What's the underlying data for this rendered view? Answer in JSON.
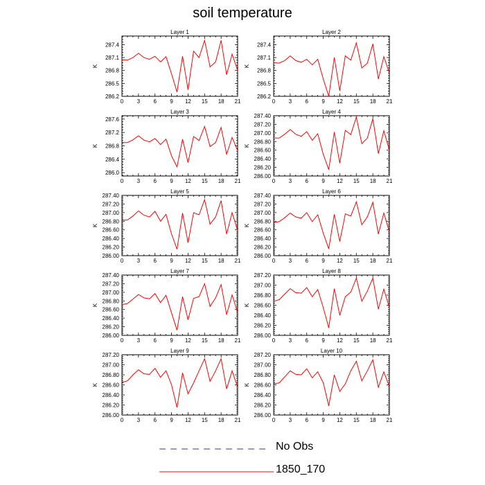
{
  "title": "soil temperature",
  "legend": [
    {
      "label": "No Obs",
      "color": "#3333aa",
      "style": "dashed"
    },
    {
      "label": "1850_170",
      "color": "#ff0000",
      "style": "solid"
    }
  ],
  "chart_data": [
    {
      "type": "line",
      "title": "Layer 1",
      "ylabel": "K",
      "xlim": [
        0,
        21
      ],
      "xticks": [
        0,
        3,
        6,
        9,
        12,
        15,
        18,
        21
      ],
      "ylim": [
        286.2,
        287.6
      ],
      "yticks": [
        286.2,
        286.5,
        286.8,
        287.1,
        287.4
      ],
      "ytick_labels": [
        "286.2",
        "286.5",
        "286.8",
        "287.1",
        "287.4"
      ],
      "series": [
        {
          "name": "1850_170",
          "color": "#ff0000",
          "x": [
            0,
            1,
            2,
            3,
            4,
            5,
            6,
            7,
            8,
            9,
            10,
            11,
            12,
            13,
            14,
            15,
            16,
            17,
            18,
            19,
            20,
            21
          ],
          "y": [
            287.05,
            287.04,
            287.1,
            287.2,
            287.1,
            287.06,
            287.13,
            287.0,
            287.12,
            286.72,
            286.3,
            287.13,
            286.35,
            287.25,
            287.1,
            287.5,
            286.88,
            287.0,
            287.5,
            286.7,
            287.18,
            286.8
          ]
        }
      ]
    },
    {
      "type": "line",
      "title": "Layer 2",
      "ylabel": "K",
      "xlim": [
        0,
        21
      ],
      "xticks": [
        0,
        3,
        6,
        9,
        12,
        15,
        18,
        21
      ],
      "ylim": [
        286.2,
        287.6
      ],
      "yticks": [
        286.2,
        286.5,
        286.8,
        287.1,
        287.4
      ],
      "ytick_labels": [
        "286.2",
        "286.5",
        "286.8",
        "287.1",
        "287.4"
      ],
      "series": [
        {
          "name": "1850_170",
          "color": "#ff0000",
          "x": [
            0,
            1,
            2,
            3,
            4,
            5,
            6,
            7,
            8,
            9,
            10,
            11,
            12,
            13,
            14,
            15,
            16,
            17,
            18,
            19,
            20,
            21
          ],
          "y": [
            286.98,
            286.97,
            287.03,
            287.14,
            287.03,
            286.99,
            287.06,
            286.93,
            287.06,
            286.6,
            286.2,
            287.1,
            286.33,
            287.14,
            287.04,
            287.44,
            286.86,
            286.97,
            287.42,
            286.6,
            287.12,
            286.74
          ]
        }
      ]
    },
    {
      "type": "line",
      "title": "Layer 3",
      "ylabel": "K",
      "xlim": [
        0,
        21
      ],
      "xticks": [
        0,
        3,
        6,
        9,
        12,
        15,
        18,
        21
      ],
      "ylim": [
        285.9,
        287.7
      ],
      "yticks": [
        286.0,
        286.4,
        286.8,
        287.2,
        287.6
      ],
      "ytick_labels": [
        "286.0",
        "286.4",
        "286.8",
        "287.2",
        "287.6"
      ],
      "series": [
        {
          "name": "1850_170",
          "color": "#ff0000",
          "x": [
            0,
            1,
            2,
            3,
            4,
            5,
            6,
            7,
            8,
            9,
            10,
            11,
            12,
            13,
            14,
            15,
            16,
            17,
            18,
            19,
            20,
            21
          ],
          "y": [
            286.9,
            286.9,
            286.98,
            287.1,
            286.97,
            286.92,
            287.02,
            286.84,
            287.0,
            286.5,
            286.17,
            287.0,
            286.3,
            287.08,
            286.96,
            287.38,
            286.78,
            286.9,
            287.35,
            286.55,
            287.05,
            286.66
          ]
        }
      ]
    },
    {
      "type": "line",
      "title": "Layer 4",
      "ylabel": "K",
      "xlim": [
        0,
        21
      ],
      "xticks": [
        0,
        3,
        6,
        9,
        12,
        15,
        18,
        21
      ],
      "ylim": [
        286.0,
        287.4
      ],
      "yticks": [
        286.0,
        286.2,
        286.4,
        286.6,
        286.8,
        287.0,
        287.2,
        287.4
      ],
      "ytick_labels": [
        "286.00",
        "286.20",
        "286.40",
        "286.60",
        "286.80",
        "287.00",
        "287.20",
        "287.40"
      ],
      "series": [
        {
          "name": "1850_170",
          "color": "#ff0000",
          "x": [
            0,
            1,
            2,
            3,
            4,
            5,
            6,
            7,
            8,
            9,
            10,
            11,
            12,
            13,
            14,
            15,
            16,
            17,
            18,
            19,
            20,
            21
          ],
          "y": [
            286.88,
            286.88,
            286.97,
            287.08,
            286.97,
            286.92,
            287.03,
            286.83,
            286.98,
            286.5,
            286.15,
            287.02,
            286.3,
            287.06,
            286.96,
            287.37,
            286.75,
            286.88,
            287.33,
            286.52,
            287.05,
            286.6
          ]
        }
      ]
    },
    {
      "type": "line",
      "title": "Layer 5",
      "ylabel": "K",
      "xlim": [
        0,
        21
      ],
      "xticks": [
        0,
        3,
        6,
        9,
        12,
        15,
        18,
        21
      ],
      "ylim": [
        286.0,
        287.4
      ],
      "yticks": [
        286.0,
        286.2,
        286.4,
        286.6,
        286.8,
        287.0,
        287.2,
        287.4
      ],
      "ytick_labels": [
        "286.00",
        "286.20",
        "286.40",
        "286.60",
        "286.80",
        "287.00",
        "287.20",
        "287.40"
      ],
      "series": [
        {
          "name": "1850_170",
          "color": "#ff0000",
          "x": [
            0,
            1,
            2,
            3,
            4,
            5,
            6,
            7,
            8,
            9,
            10,
            11,
            12,
            13,
            14,
            15,
            16,
            17,
            18,
            19,
            20,
            21
          ],
          "y": [
            286.82,
            286.83,
            286.92,
            287.04,
            286.94,
            286.9,
            287.03,
            286.8,
            286.96,
            286.5,
            286.15,
            286.99,
            286.3,
            287.0,
            286.95,
            287.3,
            286.73,
            286.9,
            287.28,
            286.5,
            287.0,
            286.58
          ]
        }
      ]
    },
    {
      "type": "line",
      "title": "Layer 6",
      "ylabel": "K",
      "xlim": [
        0,
        21
      ],
      "xticks": [
        0,
        3,
        6,
        9,
        12,
        15,
        18,
        21
      ],
      "ylim": [
        286.0,
        287.4
      ],
      "yticks": [
        286.0,
        286.2,
        286.4,
        286.6,
        286.8,
        287.0,
        287.2,
        287.4
      ],
      "ytick_labels": [
        "286.00",
        "286.20",
        "286.40",
        "286.60",
        "286.80",
        "287.00",
        "287.20",
        "287.40"
      ],
      "series": [
        {
          "name": "1850_170",
          "color": "#ff0000",
          "x": [
            0,
            1,
            2,
            3,
            4,
            5,
            6,
            7,
            8,
            9,
            10,
            11,
            12,
            13,
            14,
            15,
            16,
            17,
            18,
            19,
            20,
            21
          ],
          "y": [
            286.77,
            286.79,
            286.88,
            286.99,
            286.9,
            286.87,
            287.0,
            286.79,
            286.95,
            286.52,
            286.16,
            286.96,
            286.33,
            286.97,
            286.92,
            287.25,
            286.72,
            286.9,
            287.24,
            286.5,
            286.99,
            286.55
          ]
        }
      ]
    },
    {
      "type": "line",
      "title": "Layer 7",
      "ylabel": "K",
      "xlim": [
        0,
        21
      ],
      "xticks": [
        0,
        3,
        6,
        9,
        12,
        15,
        18,
        21
      ],
      "ylim": [
        286.0,
        287.4
      ],
      "yticks": [
        286.0,
        286.2,
        286.4,
        286.6,
        286.8,
        287.0,
        287.2,
        287.4
      ],
      "ytick_labels": [
        "286.00",
        "286.20",
        "286.40",
        "286.60",
        "286.80",
        "287.00",
        "287.20",
        "287.40"
      ],
      "series": [
        {
          "name": "1850_170",
          "color": "#ff0000",
          "x": [
            0,
            1,
            2,
            3,
            4,
            5,
            6,
            7,
            8,
            9,
            10,
            11,
            12,
            13,
            14,
            15,
            16,
            17,
            18,
            19,
            20,
            21
          ],
          "y": [
            286.71,
            286.74,
            286.84,
            286.95,
            286.87,
            286.85,
            286.97,
            286.76,
            286.93,
            286.52,
            286.12,
            286.9,
            286.36,
            286.86,
            286.9,
            287.2,
            286.67,
            286.87,
            287.18,
            286.48,
            286.94,
            286.53
          ]
        }
      ]
    },
    {
      "type": "line",
      "title": "Layer 8",
      "ylabel": "K",
      "xlim": [
        0,
        21
      ],
      "xticks": [
        0,
        3,
        6,
        9,
        12,
        15,
        18,
        21
      ],
      "ylim": [
        286.0,
        287.2
      ],
      "yticks": [
        286.0,
        286.2,
        286.4,
        286.6,
        286.8,
        287.0,
        287.2
      ],
      "ytick_labels": [
        "286.00",
        "286.20",
        "286.40",
        "286.60",
        "286.80",
        "287.00",
        "287.20"
      ],
      "series": [
        {
          "name": "1850_170",
          "color": "#ff0000",
          "x": [
            0,
            1,
            2,
            3,
            4,
            5,
            6,
            7,
            8,
            9,
            10,
            11,
            12,
            13,
            14,
            15,
            16,
            17,
            18,
            19,
            20,
            21
          ],
          "y": [
            286.68,
            286.71,
            286.82,
            286.93,
            286.85,
            286.84,
            286.95,
            286.77,
            286.91,
            286.55,
            286.15,
            286.93,
            286.4,
            286.77,
            286.86,
            287.14,
            286.68,
            286.88,
            287.14,
            286.52,
            286.92,
            286.55
          ]
        }
      ]
    },
    {
      "type": "line",
      "title": "Layer 9",
      "ylabel": "K",
      "xlim": [
        0,
        21
      ],
      "xticks": [
        0,
        3,
        6,
        9,
        12,
        15,
        18,
        21
      ],
      "ylim": [
        286.0,
        287.2
      ],
      "yticks": [
        286.0,
        286.2,
        286.4,
        286.6,
        286.8,
        287.0,
        287.2
      ],
      "ytick_labels": [
        "286.00",
        "286.20",
        "286.40",
        "286.60",
        "286.80",
        "287.00",
        "287.20"
      ],
      "series": [
        {
          "name": "1850_170",
          "color": "#ff0000",
          "x": [
            0,
            1,
            2,
            3,
            4,
            5,
            6,
            7,
            8,
            9,
            10,
            11,
            12,
            13,
            14,
            15,
            16,
            17,
            18,
            19,
            20,
            21
          ],
          "y": [
            286.65,
            286.68,
            286.8,
            286.9,
            286.82,
            286.81,
            286.93,
            286.75,
            286.88,
            286.6,
            286.15,
            286.84,
            286.42,
            286.64,
            286.88,
            287.12,
            286.67,
            286.88,
            287.12,
            286.52,
            286.88,
            286.55
          ]
        }
      ]
    },
    {
      "type": "line",
      "title": "Layer 10",
      "ylabel": "K",
      "xlim": [
        0,
        21
      ],
      "xticks": [
        0,
        3,
        6,
        9,
        12,
        15,
        18,
        21
      ],
      "ylim": [
        286.0,
        287.2
      ],
      "yticks": [
        286.0,
        286.2,
        286.4,
        286.6,
        286.8,
        287.0,
        287.2
      ],
      "ytick_labels": [
        "286.00",
        "286.20",
        "286.40",
        "286.60",
        "286.80",
        "287.00",
        "287.20"
      ],
      "series": [
        {
          "name": "1850_170",
          "color": "#ff0000",
          "x": [
            0,
            1,
            2,
            3,
            4,
            5,
            6,
            7,
            8,
            9,
            10,
            11,
            12,
            13,
            14,
            15,
            16,
            17,
            18,
            19,
            20,
            21
          ],
          "y": [
            286.62,
            286.64,
            286.76,
            286.88,
            286.81,
            286.8,
            286.92,
            286.74,
            286.86,
            286.64,
            286.18,
            286.8,
            286.47,
            286.62,
            286.88,
            287.07,
            286.68,
            286.88,
            287.1,
            286.55,
            286.86,
            286.56
          ]
        }
      ]
    }
  ]
}
